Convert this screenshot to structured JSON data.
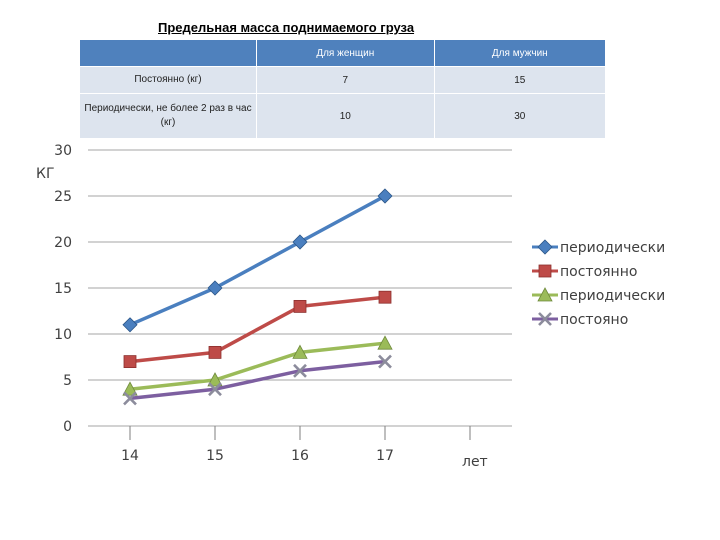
{
  "table": {
    "title": "Предельная масса поднимаемого груза",
    "headers": [
      "",
      "Для женщин",
      "Для мужчин"
    ],
    "rows": [
      {
        "label": "Постоянно (кг)",
        "women": "7",
        "men": "15"
      },
      {
        "label": "Периодически, не более 2 раз в час (кг)",
        "women": "10",
        "men": "30"
      }
    ]
  },
  "chart_data": {
    "type": "line",
    "title": "",
    "xlabel": "лет",
    "ylabel": "КГ",
    "categories": [
      "14",
      "15",
      "16",
      "17"
    ],
    "ylim": [
      0,
      30
    ],
    "yticks": [
      "0",
      "5",
      "10",
      "15",
      "20",
      "25",
      "30"
    ],
    "grid": true,
    "legend_position": "right",
    "series": [
      {
        "name": "периодически",
        "values": [
          11,
          15,
          20,
          25
        ],
        "color": "#4a7fbf",
        "marker": "diamond"
      },
      {
        "name": "постоянно",
        "values": [
          7,
          8,
          13,
          14
        ],
        "color": "#be4b48",
        "marker": "square"
      },
      {
        "name": "периодически",
        "values": [
          4,
          5,
          8,
          9
        ],
        "color": "#9bbb59",
        "marker": "triangle"
      },
      {
        "name": "постояно",
        "values": [
          3,
          4,
          6,
          7
        ],
        "color": "#7d5fa0",
        "marker": "x"
      }
    ]
  }
}
